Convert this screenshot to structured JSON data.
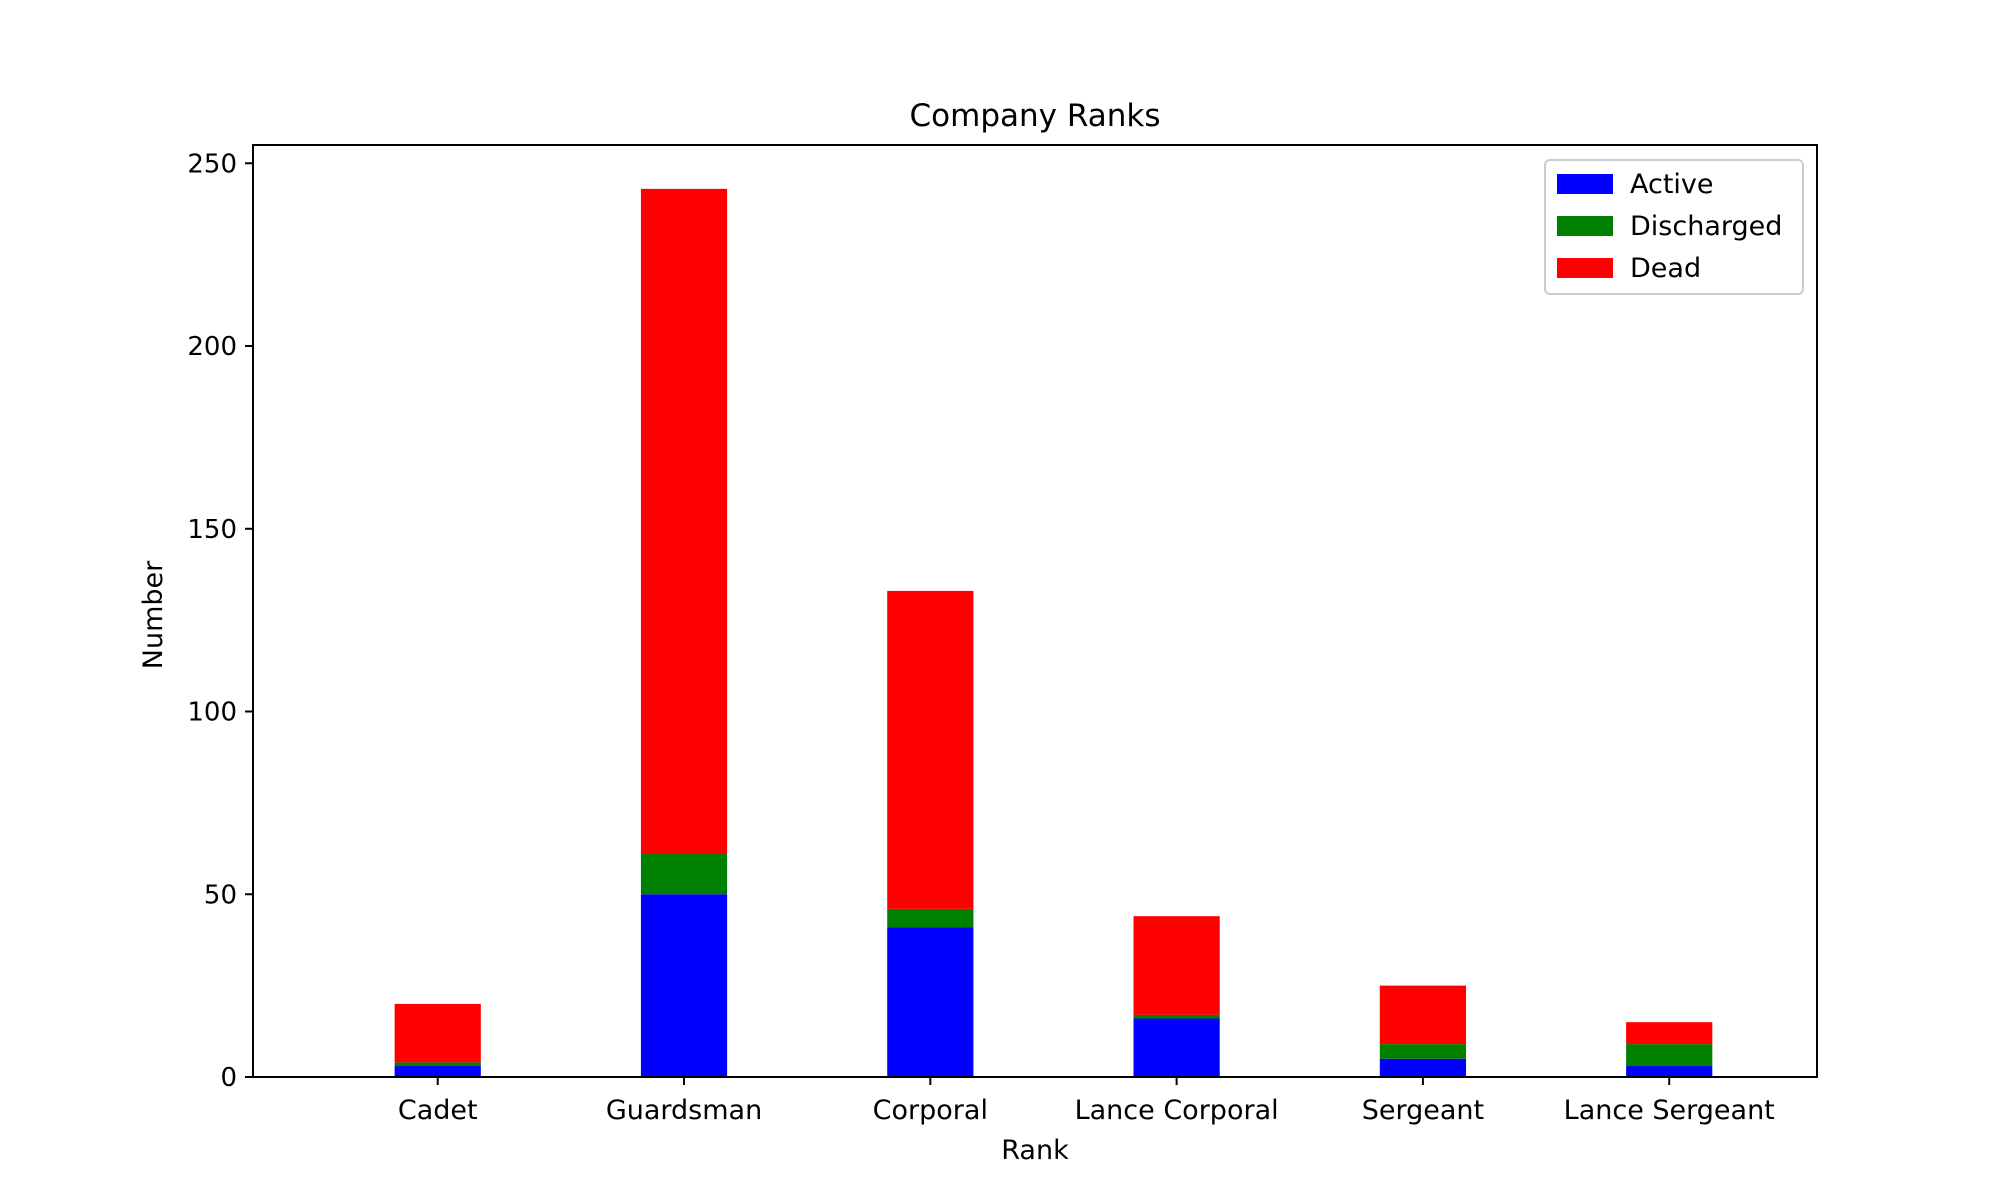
{
  "chart_data": {
    "type": "bar",
    "stacked": true,
    "title": "Company Ranks",
    "xlabel": "Rank",
    "ylabel": "Number",
    "ylim": [
      0,
      255
    ],
    "yticks": [
      0,
      50,
      100,
      150,
      200,
      250
    ],
    "grid": false,
    "legend_position": "top-right",
    "categories": [
      "Cadet",
      "Guardsman",
      "Corporal",
      "Lance Corporal",
      "Sergeant",
      "Lance Sergeant"
    ],
    "series": [
      {
        "name": "Active",
        "color": "#0000ff",
        "values": [
          3,
          50,
          41,
          16,
          5,
          3
        ]
      },
      {
        "name": "Discharged",
        "color": "#008000",
        "values": [
          1,
          11,
          5,
          1,
          4,
          6
        ]
      },
      {
        "name": "Dead",
        "color": "#ff0000",
        "values": [
          16,
          182,
          87,
          27,
          16,
          6
        ]
      }
    ]
  }
}
